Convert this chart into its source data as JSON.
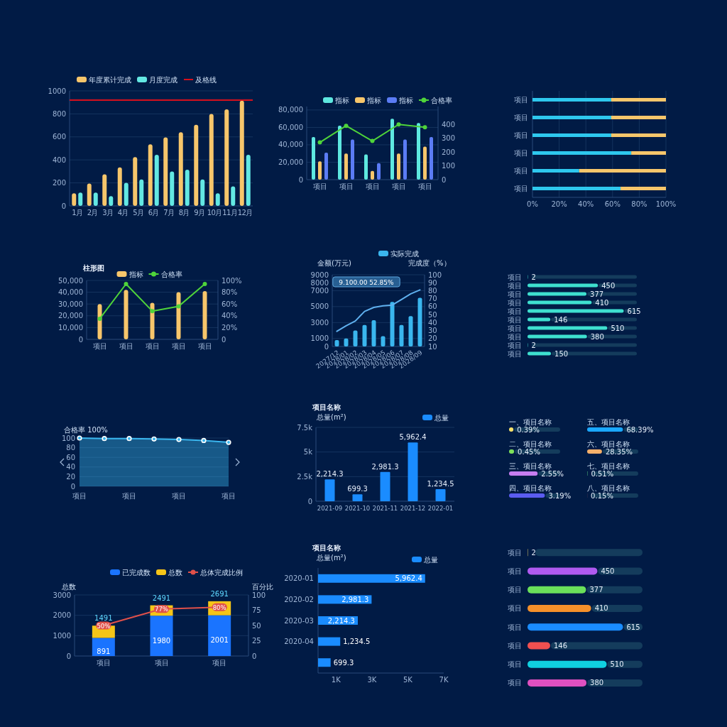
{
  "chart_data": [
    {
      "type": "bar",
      "categories": [
        "1月",
        "2月",
        "3月",
        "4月",
        "5月",
        "6月",
        "7月",
        "8月",
        "9月",
        "10月",
        "11月",
        "12月"
      ],
      "series": [
        {
          "name": "年度累计完成",
          "color": "#f7c66b",
          "values": [
            110,
            195,
            275,
            335,
            425,
            535,
            595,
            640,
            705,
            800,
            840,
            915
          ]
        },
        {
          "name": "月度完成",
          "color": "#63e8e3",
          "values": [
            115,
            115,
            85,
            200,
            230,
            445,
            300,
            315,
            230,
            110,
            170,
            445
          ]
        }
      ],
      "ylim": [
        0,
        1000
      ],
      "yticks": [
        0,
        200,
        400,
        600,
        800,
        1000
      ],
      "ref_lines": [
        {
          "axis": "y",
          "value": 920,
          "label": "及格线",
          "color": "#d7101c"
        }
      ],
      "grid": "y",
      "legend": "top left"
    },
    {
      "type": "bar",
      "categories": [
        "项目",
        "项目",
        "项目",
        "项目",
        "项目"
      ],
      "series": [
        {
          "name": "指标",
          "color": "#5ee8e0",
          "values": [
            49000,
            62000,
            29000,
            70000,
            65000
          ]
        },
        {
          "name": "指标",
          "color": "#f7c66b",
          "values": [
            21000,
            30000,
            10000,
            30000,
            38000
          ]
        },
        {
          "name": "指标",
          "color": "#5b7cf5",
          "values": [
            31000,
            46000,
            19000,
            46000,
            49000
          ]
        },
        {
          "name": "合格率",
          "type": "line",
          "axis": "y2",
          "color": "#4fd43a",
          "values": [
            270,
            390,
            280,
            400,
            380
          ]
        }
      ],
      "ylim": [
        0,
        84000
      ],
      "yticks": [
        0,
        {
          "value": 20000,
          "label": "20,000"
        },
        {
          "value": 40000,
          "label": "40,000"
        },
        {
          "value": 60000,
          "label": "60,000"
        },
        {
          "value": 80000,
          "label": "80,000"
        }
      ],
      "y2lim": [
        0,
        530
      ],
      "y2ticks": [
        0,
        100,
        200,
        300,
        400
      ],
      "marker": "circle",
      "grid": "y",
      "legend": "top right"
    },
    {
      "type": "bar",
      "orientation": "horizontal",
      "stacked": true,
      "categories": [
        "项目",
        "项目",
        "项目",
        "项目",
        "项目",
        "项目"
      ],
      "series": [
        {
          "color": "#2ec8ee",
          "values": [
            59,
            59,
            59,
            74,
            35,
            66
          ]
        },
        {
          "color": "#f7c66b",
          "values": [
            41,
            41,
            41,
            26,
            65,
            34
          ]
        }
      ],
      "xlim": [
        0,
        100
      ],
      "xticks": [
        {
          "value": 0,
          "label": "0%"
        },
        {
          "value": 20,
          "label": "20%"
        },
        {
          "value": 40,
          "label": "40%"
        },
        {
          "value": 60,
          "label": "60%"
        },
        {
          "value": 80,
          "label": "80%"
        },
        {
          "value": 100,
          "label": "100%"
        }
      ],
      "grid": "x"
    },
    {
      "type": "bar",
      "title": "柱形图",
      "categories": [
        "项目",
        "项目",
        "项目",
        "项目",
        "项目"
      ],
      "series": [
        {
          "name": "指标",
          "color": "#f7c66b",
          "values": [
            30000,
            42000,
            31000,
            40000,
            41000
          ]
        },
        {
          "name": "合格率",
          "type": "line",
          "axis": "y2",
          "color": "#4fd43a",
          "values": [
            35,
            94,
            48,
            56,
            94
          ]
        }
      ],
      "ylim": [
        0,
        50000
      ],
      "yticks": [
        0,
        {
          "value": 10000,
          "label": "10,000"
        },
        {
          "value": 20000,
          "label": "20,000"
        },
        {
          "value": 30000,
          "label": "30,000"
        },
        {
          "value": 40000,
          "label": "40,000"
        },
        {
          "value": 50000,
          "label": "50,000"
        }
      ],
      "y2lim": [
        0,
        100
      ],
      "y2ticks": [
        0,
        {
          "value": 20,
          "label": "20%"
        },
        {
          "value": 40,
          "label": "40%"
        },
        {
          "value": 60,
          "label": "60%"
        },
        {
          "value": 80,
          "label": "80%"
        },
        {
          "value": 100,
          "label": "100%"
        }
      ],
      "marker": "circle",
      "grid": "y",
      "legend": "top"
    },
    {
      "type": "bar",
      "ylabel": "金额(万元)",
      "y2label": "完成度（%）",
      "categories": [
        "2027/12",
        "2028/01",
        "2028/02",
        "2028/03",
        "2028/04",
        "2028/05",
        "2028/06",
        "2028/07",
        "2028/08",
        "2028/09"
      ],
      "series": [
        {
          "name": "实际完成",
          "color": "#3ab6ee",
          "values": [
            800,
            1000,
            2000,
            2700,
            3300,
            1300,
            5600,
            2700,
            3800,
            6100
          ]
        },
        {
          "type": "line",
          "axis": "y2",
          "color": "#5fb0ee",
          "values": [
            29,
            36,
            42,
            54,
            59,
            61,
            62,
            69,
            76,
            81
          ]
        }
      ],
      "ylim": [
        0,
        9000
      ],
      "yticks": [
        0,
        1000,
        3000,
        5000,
        7000,
        8000,
        9000
      ],
      "y2lim": [
        10,
        100
      ],
      "y2ticks": [
        10,
        20,
        30,
        40,
        50,
        60,
        70,
        80,
        90,
        100
      ],
      "annotations": [
        "9.100.00  52.85%"
      ],
      "grid": "y",
      "legend": "top right"
    },
    {
      "type": "bar",
      "orientation": "horizontal",
      "categories": [
        "项目",
        "项目",
        "项目",
        "项目",
        "项目",
        "项目",
        "项目",
        "项目",
        "项目",
        "项目"
      ],
      "values": [
        2,
        450,
        377,
        410,
        615,
        146,
        510,
        380,
        2,
        150
      ],
      "color": "#3ee0cf",
      "data_labels": true
    },
    {
      "type": "area",
      "ylabel": "合格率 100%",
      "categories": [
        "项目",
        null,
        "项目",
        null,
        "项目",
        null,
        "项目"
      ],
      "values": [
        100,
        99,
        99,
        98,
        97,
        95,
        91
      ],
      "color": "#3ab6ee",
      "ylim": [
        0,
        100
      ],
      "yticks": [
        0,
        20,
        40,
        60,
        80,
        100
      ],
      "marker": "circle",
      "grid": "y"
    },
    {
      "type": "bar",
      "title": "项目名称",
      "ylabel": "总量(m²)",
      "categories": [
        "2021-09",
        "2021-10",
        "2021-11",
        "2021-12",
        "2022-01"
      ],
      "series": [
        {
          "name": "总量",
          "color": "#1a8cff",
          "values": [
            2214.3,
            699.3,
            2981.3,
            5962.4,
            1234.5
          ],
          "value_labels": [
            "2,214.3",
            "699.3",
            "2,981.3",
            "5,962.4",
            "1,234.5"
          ]
        }
      ],
      "ylim": [
        0,
        7500
      ],
      "yticks": [
        0,
        {
          "value": 2500,
          "label": "2.5k"
        },
        {
          "value": 5000,
          "label": "5k"
        },
        {
          "value": 7500,
          "label": "7.5k"
        }
      ],
      "grid": "y",
      "legend": "top right"
    },
    {
      "type": "bar",
      "orientation": "horizontal",
      "categories": [
        "一、项目名称",
        "二、项目名称",
        "三、项目名称",
        "四、项目名称"
      ],
      "values": [
        0.39,
        0.45,
        2.55,
        3.19
      ],
      "value_labels": [
        "0.39%",
        "0.45%",
        "2.55%",
        "3.19%"
      ],
      "colors": [
        "#f5e06a",
        "#7de05a",
        "#c77df0",
        "#5b5cf0"
      ]
    },
    {
      "type": "bar",
      "orientation": "horizontal",
      "categories": [
        "五、项目名称",
        "六、项目名称",
        "七、项目名称",
        "八、项目名称"
      ],
      "values": [
        68.39,
        28.35,
        0.51,
        0.15
      ],
      "value_labels": [
        "68.39%",
        "28.35%",
        "0.51%",
        "0.15%"
      ],
      "colors": [
        "#1aa8ff",
        "#f5b06a",
        "#6af08a",
        "#f05a5a"
      ]
    },
    {
      "type": "bar",
      "stacked": true,
      "ylabel": "总数",
      "y2label": "百分比",
      "categories": [
        "项目",
        "项目",
        "项目"
      ],
      "series": [
        {
          "name": "已完成数",
          "color": "#1a74ff",
          "values": [
            891,
            1980,
            2001
          ],
          "value_labels": [
            "891",
            "1980",
            "2001"
          ]
        },
        {
          "name": "总数",
          "color": "#f5c518",
          "values": [
            600,
            511,
            690
          ]
        },
        {
          "name": "总体完成比例",
          "type": "line",
          "axis": "y2",
          "color": "#e0504a",
          "values": [
            50,
            77,
            80
          ],
          "value_labels": [
            "50%",
            "77%",
            "80%"
          ]
        }
      ],
      "totals": [
        "1491",
        "2491",
        "2691"
      ],
      "ylim": [
        0,
        3000
      ],
      "yticks": [
        0,
        1000,
        2000,
        3000
      ],
      "y2lim": [
        0,
        100
      ],
      "y2ticks": [
        0,
        25,
        50,
        75,
        100
      ],
      "marker": "square",
      "grid": "y",
      "legend": "top right"
    },
    {
      "type": "bar",
      "orientation": "horizontal",
      "title": "项目名称",
      "ylabel": "总量(m²)",
      "categories": [
        "2020-01",
        "2020-02",
        "2020-03",
        "2020-04",
        null
      ],
      "series": [
        {
          "name": "总量",
          "color": "#1a8cff",
          "values": [
            5962.4,
            2981.3,
            2214.3,
            1234.5,
            699.3
          ],
          "value_labels": [
            "5,962.4",
            "2,981.3",
            "2,214.3",
            "1,234.5",
            "699.3"
          ]
        }
      ],
      "xlim": [
        0,
        7000
      ],
      "xticks": [
        {
          "value": 1000,
          "label": "1K"
        },
        {
          "value": 3000,
          "label": "3K"
        },
        {
          "value": 5000,
          "label": "5K"
        },
        {
          "value": 7000,
          "label": "7K"
        }
      ],
      "legend": "top right"
    },
    {
      "type": "bar",
      "orientation": "horizontal",
      "categories": [
        "项目",
        "项目",
        "项目",
        "项目",
        "项目",
        "项目",
        "项目",
        "项目"
      ],
      "values": [
        2,
        450,
        377,
        410,
        615,
        146,
        510,
        380
      ],
      "colors": [
        "#fbe06a",
        "#b05af0",
        "#6ae05a",
        "#f5902a",
        "#1a8cff",
        "#f05050",
        "#10d0e0",
        "#e050c0"
      ],
      "data_labels": true
    }
  ]
}
